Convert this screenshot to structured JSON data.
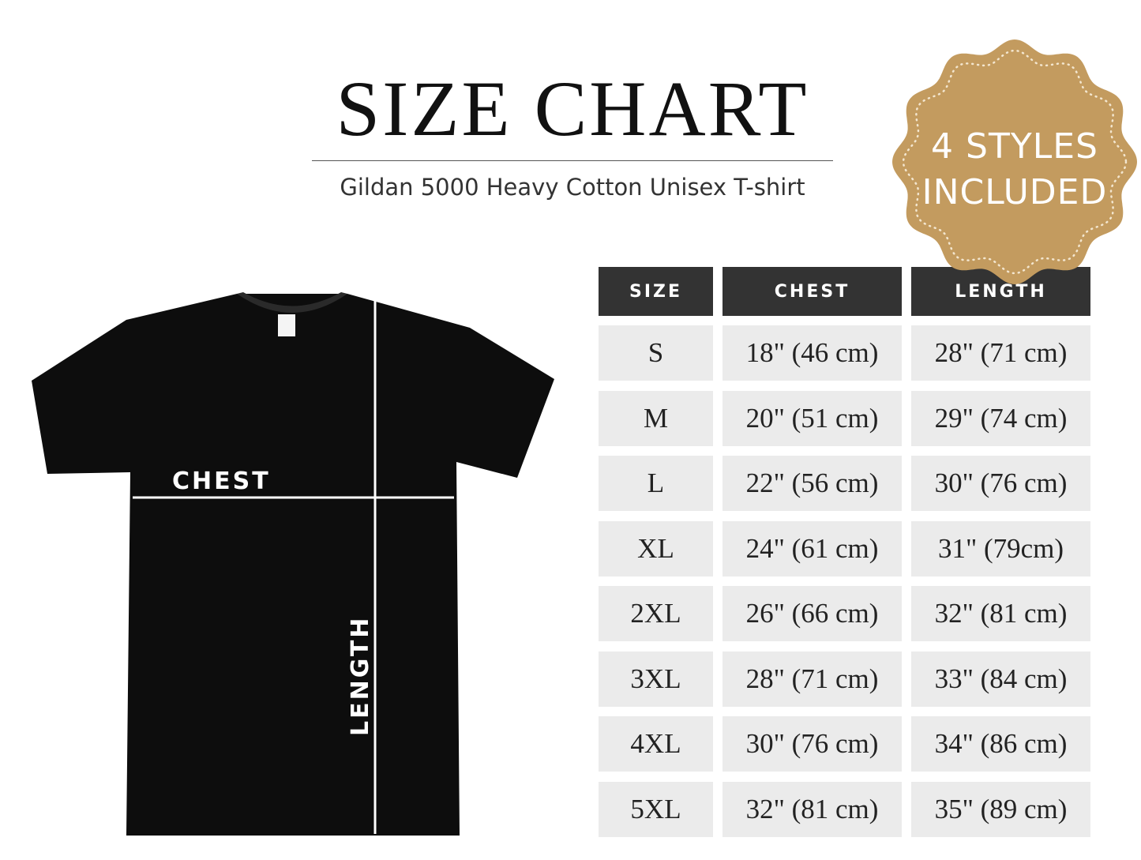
{
  "header": {
    "title": "SIZE CHART",
    "subtitle": "Gildan 5000 Heavy Cotton Unisex T-shirt"
  },
  "badge": {
    "lines": [
      "4 STYLES",
      "INCLUDED"
    ]
  },
  "shirt": {
    "chest_label": "CHEST",
    "length_label": "LENGTH"
  },
  "table": {
    "columns": [
      "SIZE",
      "CHEST",
      "LENGTH"
    ],
    "rows": [
      [
        "S",
        "18\" (46 cm)",
        "28\" (71 cm)"
      ],
      [
        "M",
        "20\" (51 cm)",
        "29\" (74 cm)"
      ],
      [
        "L",
        "22\" (56 cm)",
        "30\" (76 cm)"
      ],
      [
        "XL",
        "24\" (61 cm)",
        "31\" (79cm)"
      ],
      [
        "2XL",
        "26\" (66 cm)",
        "32\" (81 cm)"
      ],
      [
        "3XL",
        "28\" (71 cm)",
        "33\" (84 cm)"
      ],
      [
        "4XL",
        "30\" (76 cm)",
        "34\" (86 cm)"
      ],
      [
        "5XL",
        "32\" (81 cm)",
        "35\" (89 cm)"
      ]
    ]
  }
}
